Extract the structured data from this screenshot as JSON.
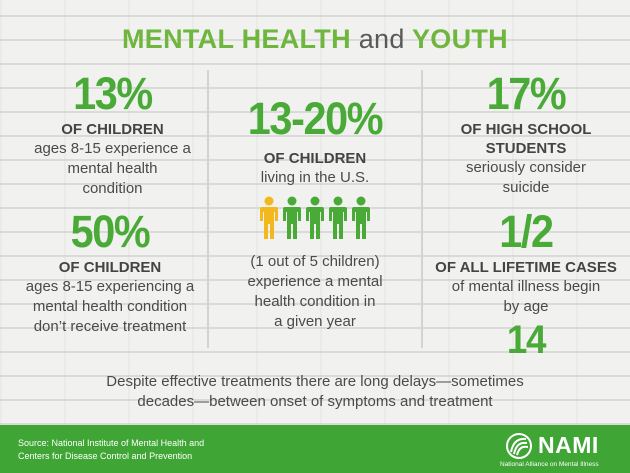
{
  "title": {
    "part1": "MENTAL HEALTH",
    "part2": "and",
    "part3": "YOUTH"
  },
  "left_top": {
    "stat": "13%",
    "heading": "OF CHILDREN",
    "body1": "ages 8-15 experience a",
    "body2": "mental health",
    "body3": "condition"
  },
  "left_bottom": {
    "stat": "50%",
    "heading": "OF CHILDREN",
    "body1": "ages 8-15 experiencing a",
    "body2": "mental health condition",
    "body3": "don’t receive treatment"
  },
  "center": {
    "stat": "13-20%",
    "heading": "OF CHILDREN",
    "body1": "living in the U.S.",
    "note1": "(1 out of 5 children)",
    "note2": "experience a mental",
    "note3": "health condition in",
    "note4": "a given year"
  },
  "right_top": {
    "stat": "17%",
    "heading1": "OF HIGH SCHOOL",
    "heading2": "STUDENTS",
    "body1": "seriously consider",
    "body2": "suicide"
  },
  "right_bottom": {
    "stat": "1/2",
    "heading": "OF ALL LIFETIME CASES",
    "body1": "of mental illness begin",
    "body2": "by age",
    "stat2": "14"
  },
  "bottom_text": {
    "line1": "Despite effective treatments there are long delays—sometimes",
    "line2": "decades—between onset of symptoms and treatment"
  },
  "footer": {
    "source1": "Source: National Institute of Mental Health and",
    "source2": "Centers for Disease Control and Prevention",
    "logo_word": "NAMI",
    "logo_tag": "National Alliance on Mental Illness"
  },
  "icons": {
    "people": [
      "person-icon-yellow",
      "person-icon-green",
      "person-icon-green",
      "person-icon-green",
      "person-icon-green"
    ]
  },
  "colors": {
    "green": "#4aaa38",
    "yellow": "#f2b81d",
    "footer": "#3fa535",
    "text": "#4a4a4a"
  }
}
